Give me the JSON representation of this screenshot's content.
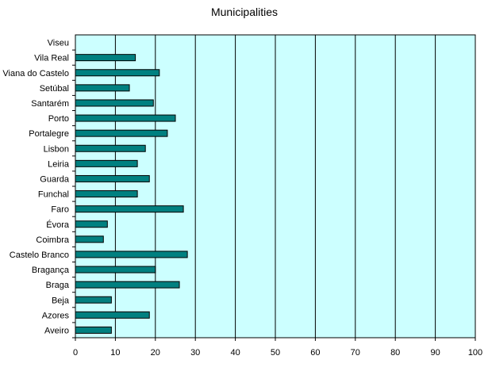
{
  "chart_data": {
    "type": "bar",
    "orientation": "horizontal",
    "title": "Municipalities",
    "xlabel": "",
    "ylabel": "",
    "xlim": [
      0,
      100
    ],
    "x_ticks": [
      0,
      10,
      20,
      30,
      40,
      50,
      60,
      70,
      80,
      90,
      100
    ],
    "grid": "vertical major gridlines",
    "legend": "none",
    "categories": [
      "Viseu",
      "Vila Real",
      "Viana do Castelo",
      "Setúbal",
      "Santarém",
      "Porto",
      "Portalegre",
      "Lisbon",
      "Leiria",
      "Guarda",
      "Funchal",
      "Faro",
      "Évora",
      "Coimbra",
      "Castelo Branco",
      "Bragança",
      "Braga",
      "Beja",
      "Azores",
      "Aveiro"
    ],
    "values": [
      0,
      15,
      21,
      13.5,
      19.5,
      25,
      23,
      17.5,
      15.5,
      18.5,
      15.5,
      27,
      8,
      7,
      28,
      20,
      26,
      9,
      18.5,
      9
    ],
    "colors": {
      "plot_background": "#ccffff",
      "bar_fill": "#008080",
      "bar_stroke": "#000000",
      "grid": "#000000"
    }
  }
}
